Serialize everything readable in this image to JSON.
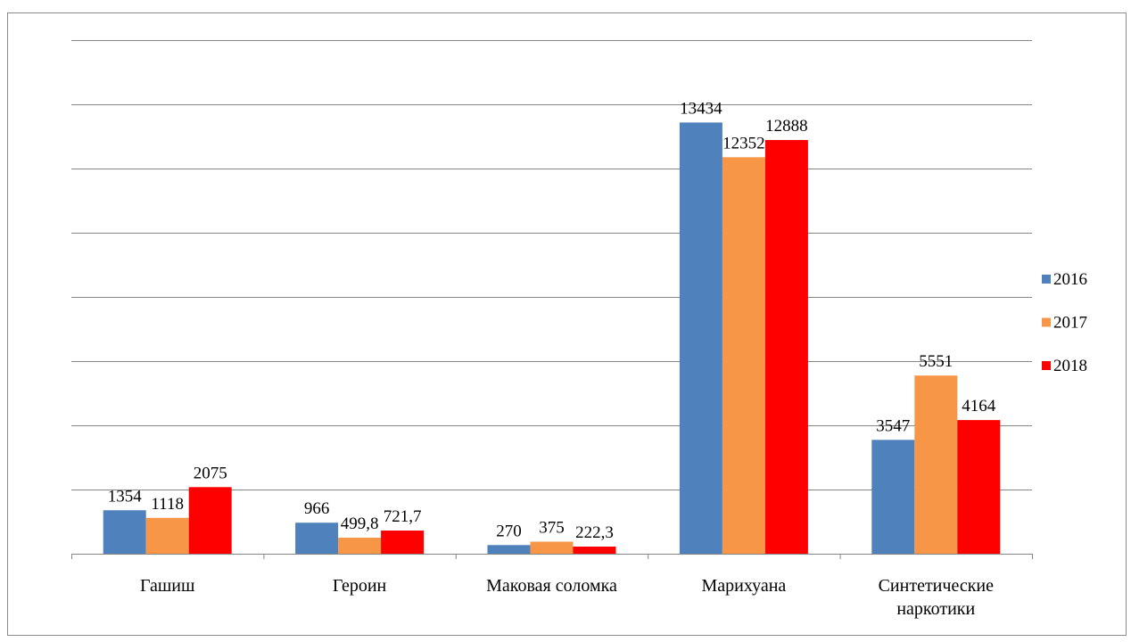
{
  "chart_data": {
    "type": "bar",
    "categories": [
      "Гашиш",
      "Героин",
      "Маковая соломка",
      "Марихуана",
      "Синтетические наркотики"
    ],
    "series": [
      {
        "name": "2016",
        "color": "#4f81bd",
        "values": [
          1354,
          966,
          270,
          13434,
          3547
        ],
        "value_labels": [
          "1354",
          "966",
          "270",
          "13434",
          "3547"
        ]
      },
      {
        "name": "2017",
        "color": "#f79646",
        "values": [
          1118,
          499.8,
          375,
          12352,
          5551
        ],
        "value_labels": [
          "1118",
          "499,8",
          "375",
          "12352",
          "5551"
        ]
      },
      {
        "name": "2018",
        "color": "#ff0000",
        "values": [
          2075,
          721.7,
          222.3,
          12888,
          4164
        ],
        "value_labels": [
          "2075",
          "721,7",
          "222,3",
          "12888",
          "4164"
        ]
      }
    ],
    "ylim": [
      0,
      16000
    ],
    "yticks": [
      0,
      2000,
      4000,
      6000,
      8000,
      10000,
      12000,
      14000,
      16000
    ],
    "grid": true,
    "legend": "right"
  }
}
